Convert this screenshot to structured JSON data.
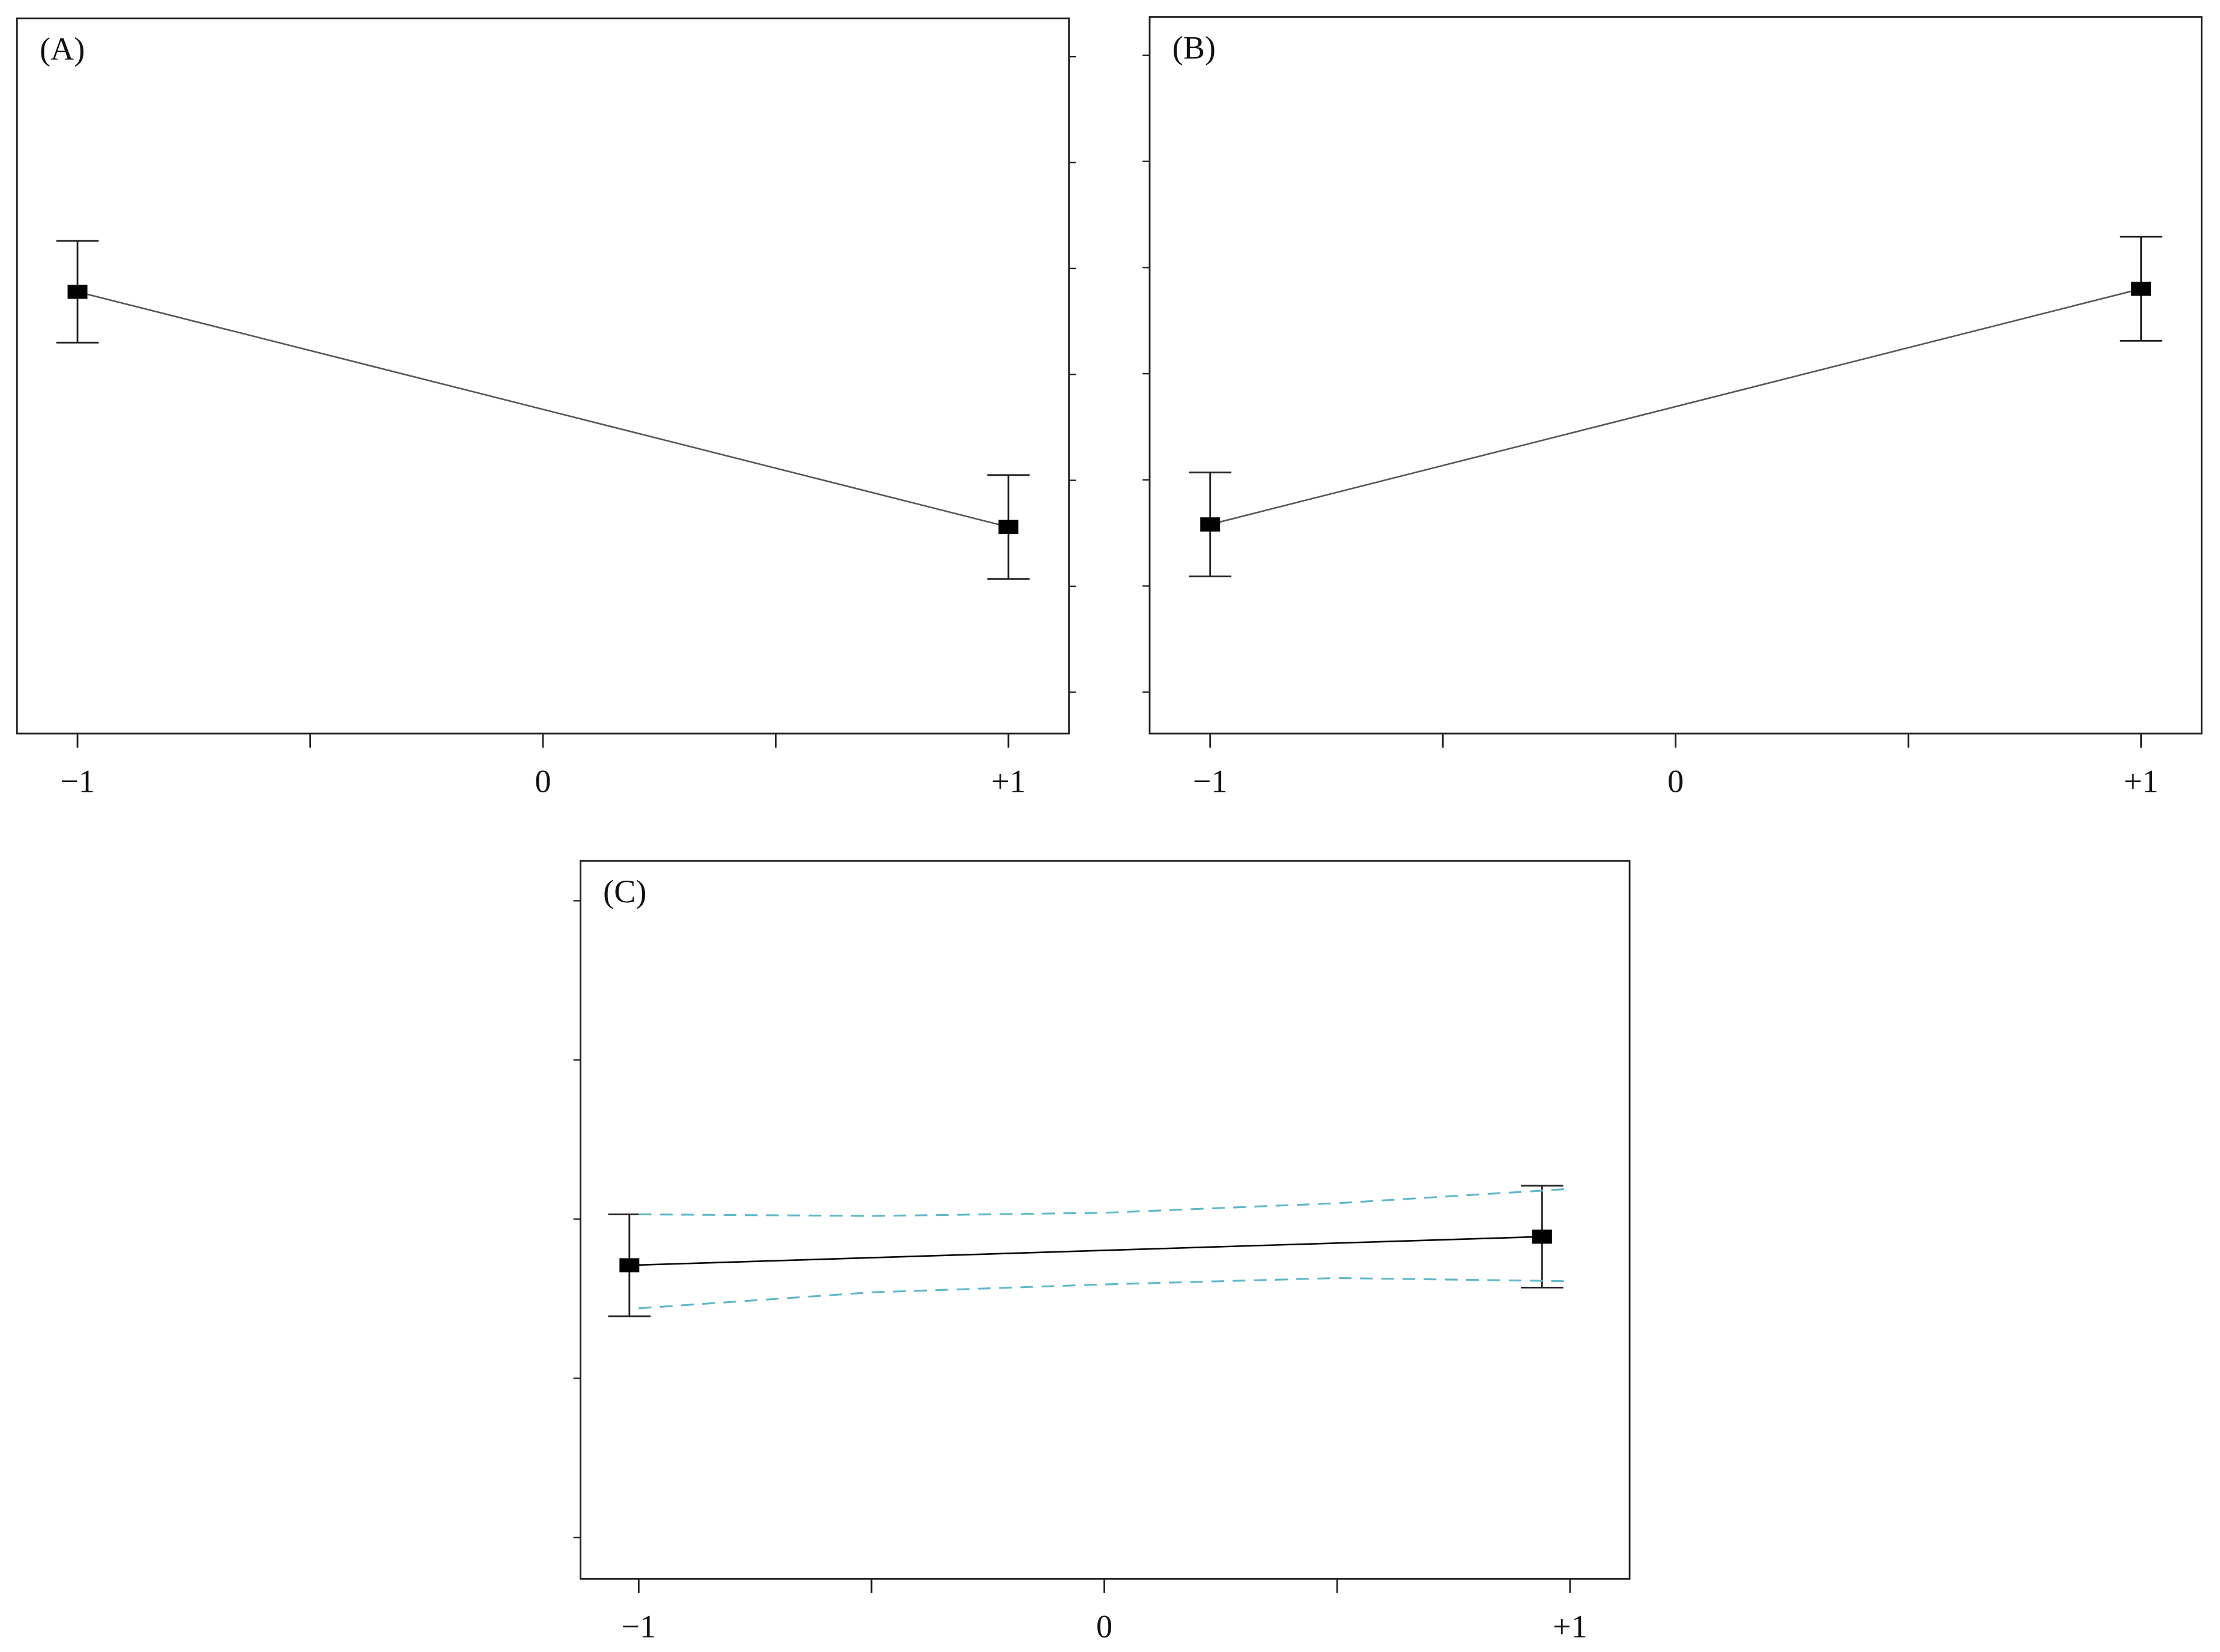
{
  "chart_data": [
    {
      "type": "line",
      "title": "(A)",
      "yaxis_side": "right",
      "x": [
        -1,
        1
      ],
      "xlim": [
        -1.13,
        1.13
      ],
      "xticks": [
        {
          "value": -1,
          "label": "−1"
        },
        0,
        {
          "value": 1,
          "label": "+1"
        }
      ],
      "xminor_ticks": [
        -0.5,
        0.5
      ],
      "ylim": [
        -0.39,
        6.36
      ],
      "yticks": [
        0,
        1,
        2,
        3,
        4,
        5,
        6
      ],
      "series": [
        {
          "color": "#000000",
          "values": [
            3.78,
            1.56
          ],
          "errors": [
            0.48,
            0.49
          ]
        }
      ]
    },
    {
      "type": "line",
      "title": "(B)",
      "yaxis_side": "left",
      "x": [
        -1,
        1
      ],
      "xlim": [
        -1.13,
        1.13
      ],
      "xticks": [
        {
          "value": -1,
          "label": "−1"
        },
        0,
        {
          "value": 1,
          "label": "+1"
        }
      ],
      "xminor_ticks": [
        -0.5,
        0.5
      ],
      "ylim": [
        -0.39,
        6.36
      ],
      "yticks": [
        0,
        1,
        2,
        3,
        4,
        5,
        6
      ],
      "series": [
        {
          "color": "#000000",
          "values": [
            1.58,
            3.8
          ],
          "errors": [
            0.49,
            0.49
          ]
        }
      ]
    },
    {
      "type": "line",
      "title": "(C)",
      "yaxis_side": "left",
      "x": [
        -1.02,
        0.94
      ],
      "xlim": [
        -1.125,
        1.128
      ],
      "xticks": [
        {
          "value": -1,
          "label": "−1"
        },
        0,
        {
          "value": 1,
          "label": "+1"
        }
      ],
      "xminor_ticks": [
        -0.5,
        0.5
      ],
      "ylim": [
        -0.26,
        4.25
      ],
      "yticks": [
        0,
        1,
        2,
        3,
        4
      ],
      "series": [
        {
          "color": "#000000",
          "values": [
            1.71,
            1.89
          ],
          "errors": [
            0.32,
            0.32
          ]
        },
        {
          "color": "#5fb8c8",
          "dash": true,
          "x": [
            -1,
            -0.5,
            0,
            0.5,
            1
          ],
          "values": [
            2.03,
            2.02,
            2.04,
            2.1,
            2.19
          ]
        },
        {
          "color": "#5fb8c8",
          "dash": true,
          "x": [
            -1,
            -0.5,
            0,
            0.5,
            1
          ],
          "values": [
            1.44,
            1.54,
            1.59,
            1.63,
            1.61
          ]
        }
      ]
    }
  ]
}
